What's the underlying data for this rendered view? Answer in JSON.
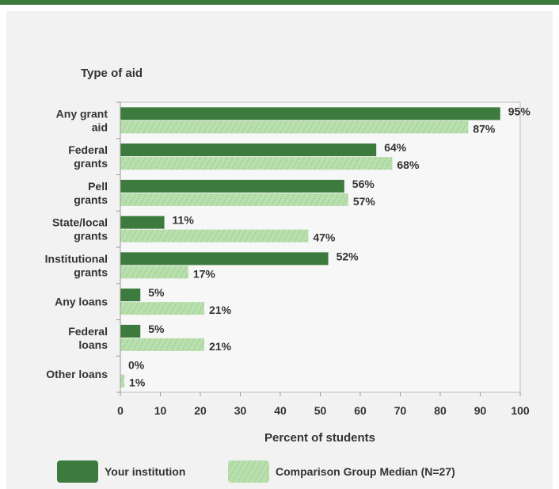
{
  "chart_data": {
    "type": "bar",
    "orientation": "horizontal",
    "title": "Type of aid",
    "xlabel": "Percent of students",
    "xlim": [
      0,
      100
    ],
    "xticks": [
      0,
      10,
      20,
      30,
      40,
      50,
      60,
      70,
      80,
      90,
      100
    ],
    "grid": false,
    "legend_position": "bottom",
    "categories": [
      [
        "Any grant",
        "aid"
      ],
      [
        "Federal",
        "grants"
      ],
      [
        "Pell",
        "grants"
      ],
      [
        "State/local",
        "grants"
      ],
      [
        "Institutional",
        "grants"
      ],
      [
        "Any loans"
      ],
      [
        "Federal",
        "loans"
      ],
      [
        "Other loans"
      ]
    ],
    "series": [
      {
        "name": "Your institution",
        "color": "#3d7a3d",
        "values": [
          95,
          64,
          56,
          11,
          52,
          5,
          5,
          0
        ],
        "labels": [
          "95%",
          "64%",
          "56%",
          "11%",
          "52%",
          "5%",
          "5%",
          "0%"
        ]
      },
      {
        "name": "Comparison Group Median (N=27)",
        "color": "#b9dfae",
        "pattern": "hatched",
        "values": [
          87,
          68,
          57,
          47,
          17,
          21,
          21,
          1
        ],
        "labels": [
          "87%",
          "68%",
          "57%",
          "47%",
          "17%",
          "21%",
          "21%",
          "1%"
        ]
      }
    ]
  }
}
